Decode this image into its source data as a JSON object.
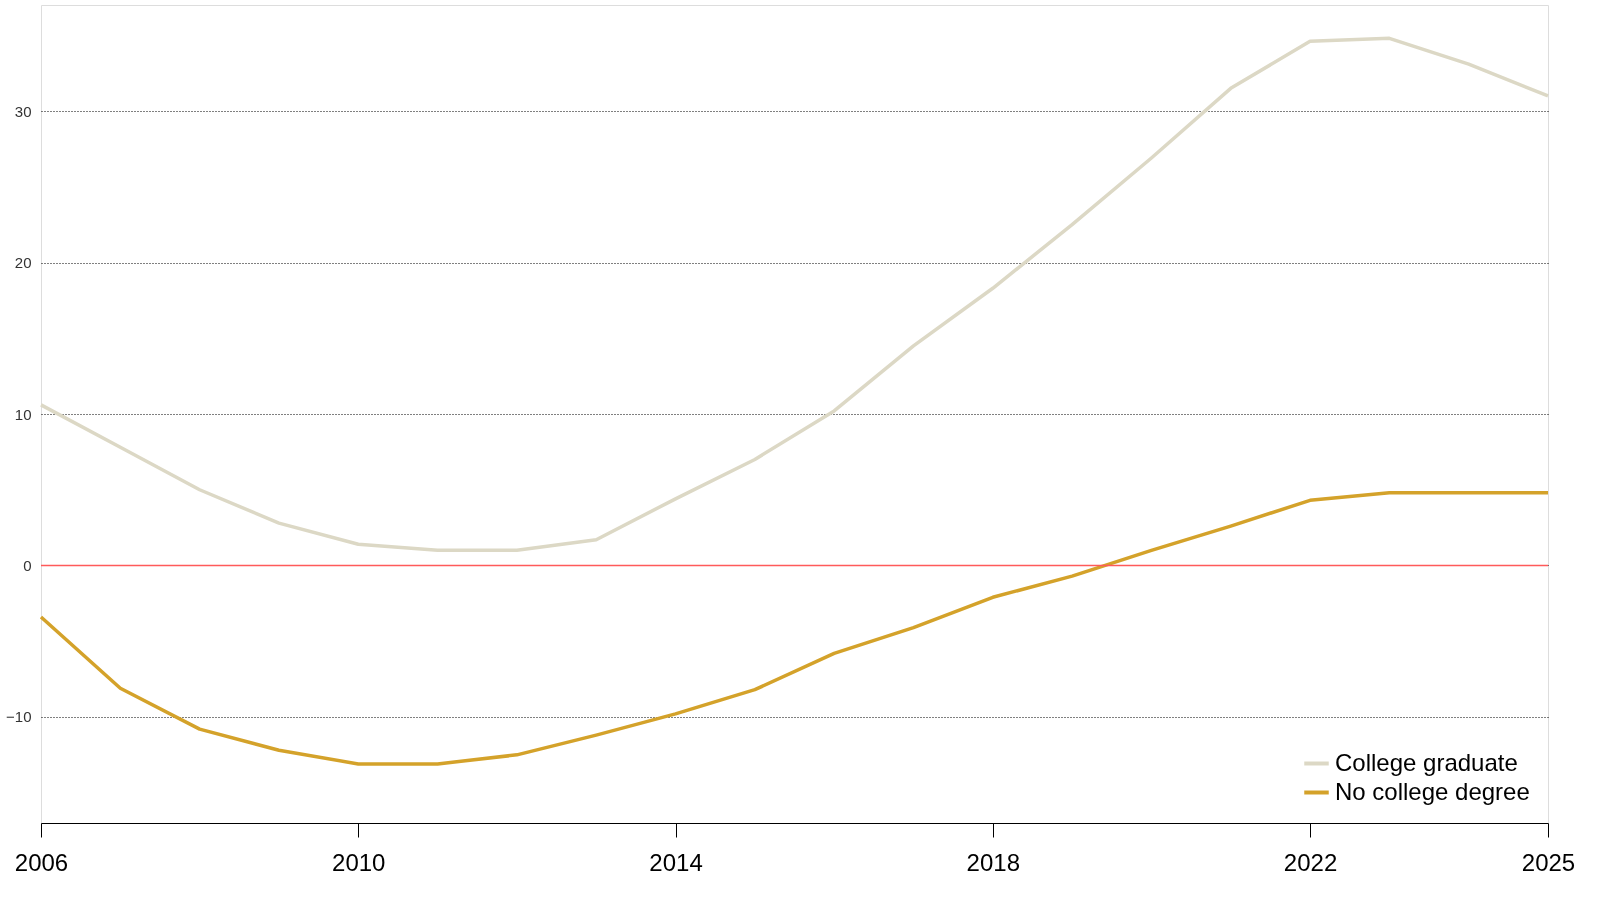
{
  "chart_data": {
    "type": "line",
    "x": [
      2006,
      2007,
      2008,
      2009,
      2010,
      2011,
      2012,
      2013,
      2014,
      2015,
      2016,
      2017,
      2018,
      2019,
      2020,
      2021,
      2022,
      2023,
      2024,
      2025
    ],
    "series": [
      {
        "name": "College graduate",
        "color": "#dcd8c5",
        "values": [
          10.6,
          7.8,
          5.0,
          2.8,
          1.4,
          1.0,
          1.0,
          1.7,
          4.4,
          7.0,
          10.2,
          14.5,
          18.3,
          22.5,
          26.9,
          31.5,
          34.6,
          34.8,
          33.1,
          31.0
        ]
      },
      {
        "name": "No college degree",
        "color": "#d4a22a",
        "values": [
          -3.4,
          -8.1,
          -10.8,
          -12.2,
          -13.1,
          -13.1,
          -12.5,
          -11.2,
          -9.8,
          -8.2,
          -5.8,
          -4.1,
          -2.1,
          -0.7,
          1.0,
          2.6,
          4.3,
          4.8,
          4.8,
          4.8
        ]
      }
    ],
    "xlim": [
      2006,
      2025
    ],
    "xticks": [
      2006,
      2010,
      2014,
      2018,
      2022,
      2025
    ],
    "ylim": [
      -17,
      37
    ],
    "yticks": [
      -10,
      0,
      10,
      20,
      30
    ],
    "grid": "y",
    "legend": "bottom right",
    "line_style": "solid",
    "marker": "none",
    "ref_lines": [
      {
        "axis": "y",
        "value": 0,
        "color": "#ff5a5a"
      }
    ]
  }
}
